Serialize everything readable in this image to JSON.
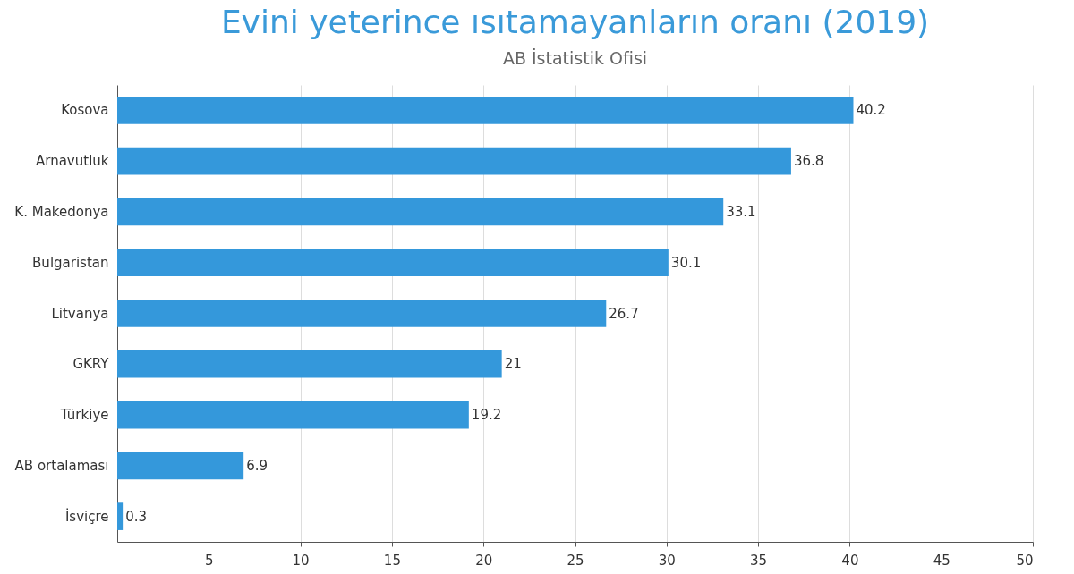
{
  "chart_data": {
    "type": "bar",
    "orientation": "horizontal",
    "title": "Evini yeterince ısıtamayanların oranı (2019)",
    "subtitle": "AB İstatistik Ofisi",
    "categories": [
      "Kosova",
      "Arnavutluk",
      "K. Makedonya",
      "Bulgaristan",
      "Litvanya",
      "GKRY",
      "Türkiye",
      "AB ortalaması",
      "İsviçre"
    ],
    "values": [
      40.2,
      36.8,
      33.1,
      30.1,
      26.7,
      21,
      19.2,
      6.9,
      0.3
    ],
    "color": "#3498db",
    "xlim": [
      0,
      50
    ],
    "xticks": [
      5,
      10,
      15,
      20,
      25,
      30,
      35,
      40,
      45,
      50
    ],
    "grid": "x",
    "data_labels": true
  }
}
